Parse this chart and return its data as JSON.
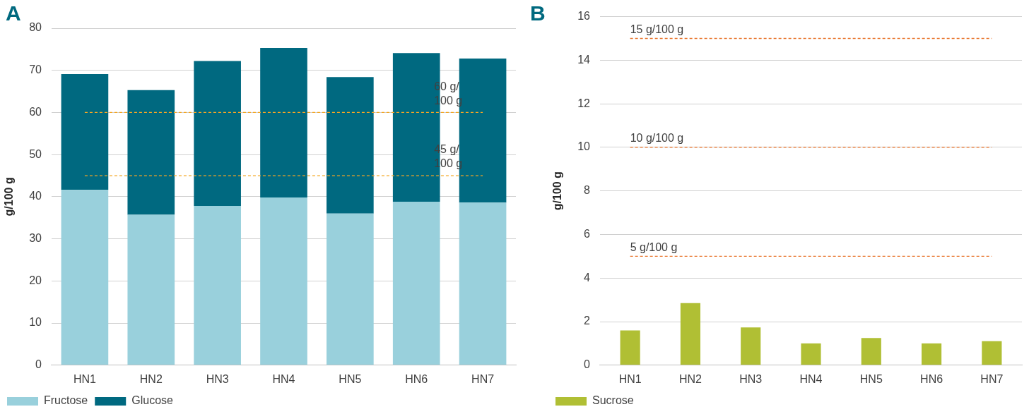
{
  "chart_data": [
    {
      "type": "bar",
      "stacked": true,
      "annotations": [
        "A"
      ],
      "ylabel": "g/100 g",
      "categories": [
        "HN1",
        "HN2",
        "HN3",
        "HN4",
        "HN5",
        "HN6",
        "HN7"
      ],
      "series": [
        {
          "name": "Fructose",
          "color": "#99d0dc",
          "values": [
            41.6,
            35.7,
            37.8,
            39.8,
            36.0,
            38.8,
            38.6
          ]
        },
        {
          "name": "Glucose",
          "color": "#006980",
          "values": [
            27.5,
            29.6,
            34.4,
            35.5,
            32.4,
            35.3,
            34.2
          ]
        }
      ],
      "ylim": [
        0,
        80
      ],
      "yticks": [
        0,
        10,
        20,
        30,
        40,
        50,
        60,
        70,
        80
      ],
      "grid": "y",
      "legend": "bottom left",
      "ref_lines": [
        {
          "axis": "y",
          "value": 60,
          "label": "60 g/100 g",
          "color": "#f5a623",
          "line_style": "dashed"
        },
        {
          "axis": "y",
          "value": 45,
          "label": "45 g/100 g",
          "color": "#f5a623",
          "line_style": "dashed"
        }
      ]
    },
    {
      "type": "bar",
      "annotations": [
        "B"
      ],
      "ylabel": "g/100 g",
      "categories": [
        "HN1",
        "HN2",
        "HN3",
        "HN4",
        "HN5",
        "HN6",
        "HN7"
      ],
      "series": [
        {
          "name": "Sucrose",
          "color": "#b0bf34",
          "values": [
            1.6,
            2.85,
            1.73,
            1.0,
            1.25,
            1.0,
            1.1
          ]
        }
      ],
      "ylim": [
        0,
        16
      ],
      "yticks": [
        0,
        2,
        4,
        6,
        8,
        10,
        12,
        14,
        16
      ],
      "grid": "y",
      "legend": "bottom left",
      "ref_lines": [
        {
          "axis": "y",
          "value": 15,
          "label": "15 g/100 g",
          "color": "#e8732a",
          "line_style": "dashed"
        },
        {
          "axis": "y",
          "value": 10,
          "label": "10 g/100 g",
          "color": "#e8732a",
          "line_style": "dashed"
        },
        {
          "axis": "y",
          "value": 5,
          "label": "5 g/100 g",
          "color": "#e8732a",
          "line_style": "dashed"
        }
      ]
    }
  ]
}
